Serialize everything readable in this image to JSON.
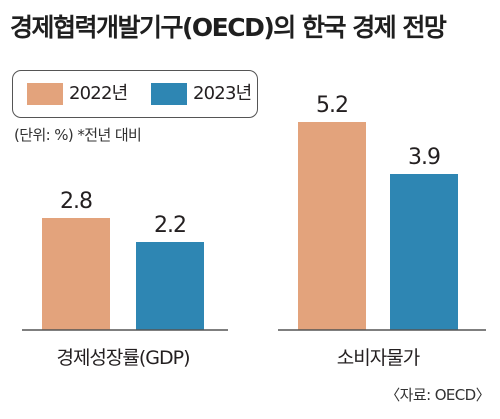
{
  "title": "경제협력개발기구(OECD)의 한국 경제 전망",
  "unit_note": "(단위: %) *전년 대비",
  "source": "〈자료: OECD〉",
  "colors": {
    "series_2022": "#e3a37c",
    "series_2023": "#2e86b3",
    "axis": "#555555"
  },
  "chart_data": {
    "type": "bar",
    "categories": [
      "경제성장률(GDP)",
      "소비자물가"
    ],
    "series": [
      {
        "name": "2022년",
        "values": [
          2.8,
          5.2
        ]
      },
      {
        "name": "2023년",
        "values": [
          2.2,
          3.9
        ]
      }
    ],
    "value_labels": [
      [
        "2.8",
        "5.2"
      ],
      [
        "2.2",
        "3.9"
      ]
    ],
    "ylim": [
      0,
      5.8
    ],
    "legend_position": "top-left",
    "grid": false
  }
}
